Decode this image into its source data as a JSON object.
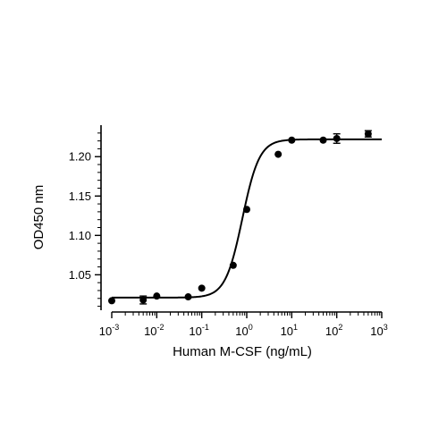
{
  "chart_data": {
    "type": "scatter",
    "title": "",
    "xlabel": "Human M-CSF (ng/mL)",
    "ylabel": "OD450 nm",
    "x_scale": "log",
    "xlim": [
      0.001,
      1000
    ],
    "ylim": [
      1.005,
      1.24
    ],
    "grid": false,
    "legend": "none",
    "x_ticks": [
      {
        "value": 0.001,
        "base": "10",
        "exp": "-3"
      },
      {
        "value": 0.01,
        "base": "10",
        "exp": "-2"
      },
      {
        "value": 0.1,
        "base": "10",
        "exp": "-1"
      },
      {
        "value": 1,
        "base": "10",
        "exp": "0"
      },
      {
        "value": 10,
        "base": "10",
        "exp": "1"
      },
      {
        "value": 100,
        "base": "10",
        "exp": "2"
      },
      {
        "value": 1000,
        "base": "10",
        "exp": "3"
      }
    ],
    "y_ticks": [
      {
        "value": 1.05,
        "label": "1.05"
      },
      {
        "value": 1.1,
        "label": "1.10"
      },
      {
        "value": 1.15,
        "label": "1.15"
      },
      {
        "value": 1.2,
        "label": "1.20"
      }
    ],
    "series": [
      {
        "points": [
          {
            "x": 0.001,
            "y": 1.017,
            "err": 0
          },
          {
            "x": 0.005,
            "y": 1.018,
            "err": 0.005
          },
          {
            "x": 0.01,
            "y": 1.023,
            "err": 0
          },
          {
            "x": 0.05,
            "y": 1.022,
            "err": 0
          },
          {
            "x": 0.1,
            "y": 1.033,
            "err": 0
          },
          {
            "x": 0.5,
            "y": 1.062,
            "err": 0
          },
          {
            "x": 1,
            "y": 1.133,
            "err": 0
          },
          {
            "x": 5,
            "y": 1.203,
            "err": 0
          },
          {
            "x": 10,
            "y": 1.221,
            "err": 0
          },
          {
            "x": 50,
            "y": 1.221,
            "err": 0
          },
          {
            "x": 100,
            "y": 1.223,
            "err": 0.006
          },
          {
            "x": 500,
            "y": 1.229,
            "err": 0.004
          }
        ],
        "fit": {
          "model": "4PL",
          "bottom": 1.021,
          "top": 1.222,
          "ec50": 0.8,
          "hill": 2.3
        }
      }
    ]
  }
}
